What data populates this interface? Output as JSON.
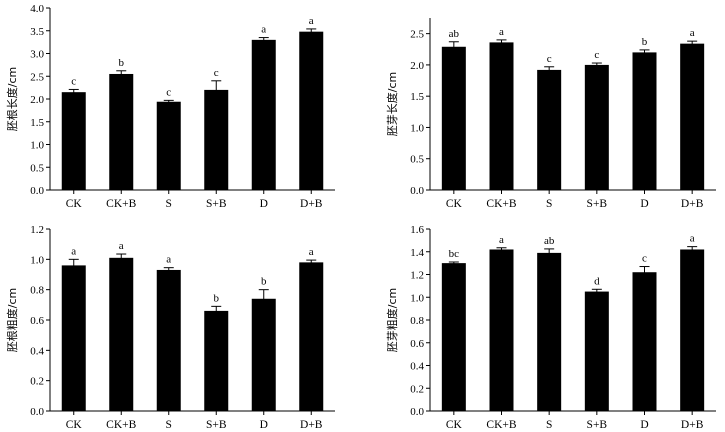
{
  "chart_data": [
    {
      "type": "bar",
      "ylabel": "胚根长度/cm",
      "categories": [
        "CK",
        "CK+B",
        "S",
        "S+B",
        "D",
        "D+B"
      ],
      "values": [
        2.15,
        2.55,
        1.94,
        2.2,
        3.3,
        3.48
      ],
      "errors": [
        0.06,
        0.07,
        0.03,
        0.2,
        0.05,
        0.06
      ],
      "letters": [
        "c",
        "b",
        "c",
        "c",
        "a",
        "a"
      ],
      "ylim": [
        0,
        4.0
      ],
      "yticks": [
        "0.0",
        "0.5",
        "1.0",
        "1.5",
        "2.0",
        "2.5",
        "3.0",
        "3.5",
        "4.0"
      ]
    },
    {
      "type": "bar",
      "ylabel": "胚芽长度/cm",
      "categories": [
        "CK",
        "CK+B",
        "S",
        "S+B",
        "D",
        "D+B"
      ],
      "values": [
        2.29,
        2.36,
        1.92,
        2.0,
        2.2,
        2.34
      ],
      "errors": [
        0.08,
        0.04,
        0.05,
        0.03,
        0.04,
        0.04
      ],
      "letters": [
        "ab",
        "a",
        "c",
        "c",
        "b",
        "a"
      ],
      "ylim": [
        0,
        2.75
      ],
      "yticks": [
        "0.0",
        "0.5",
        "1.0",
        "1.5",
        "2.0",
        "2.5"
      ]
    },
    {
      "type": "bar",
      "ylabel": "胚根粗度/cm",
      "categories": [
        "CK",
        "CK+B",
        "S",
        "S+B",
        "D",
        "D+B"
      ],
      "values": [
        0.96,
        1.01,
        0.93,
        0.66,
        0.74,
        0.98
      ],
      "errors": [
        0.04,
        0.025,
        0.015,
        0.03,
        0.06,
        0.015
      ],
      "letters": [
        "a",
        "a",
        "a",
        "b",
        "b",
        "a"
      ],
      "ylim": [
        0,
        1.2
      ],
      "yticks": [
        "0.0",
        "0.2",
        "0.4",
        "0.6",
        "0.8",
        "1.0",
        "1.2"
      ]
    },
    {
      "type": "bar",
      "ylabel": "胚芽粗度/cm",
      "categories": [
        "CK",
        "CK+B",
        "S",
        "S+B",
        "D",
        "D+B"
      ],
      "values": [
        1.3,
        1.42,
        1.39,
        1.05,
        1.22,
        1.42
      ],
      "errors": [
        0.01,
        0.015,
        0.035,
        0.02,
        0.05,
        0.025
      ],
      "letters": [
        "bc",
        "a",
        "ab",
        "d",
        "c",
        "a"
      ],
      "ylim": [
        0,
        1.6
      ],
      "yticks": [
        "0.0",
        "0.2",
        "0.4",
        "0.6",
        "0.8",
        "1.0",
        "1.2",
        "1.4",
        "1.6"
      ]
    }
  ]
}
